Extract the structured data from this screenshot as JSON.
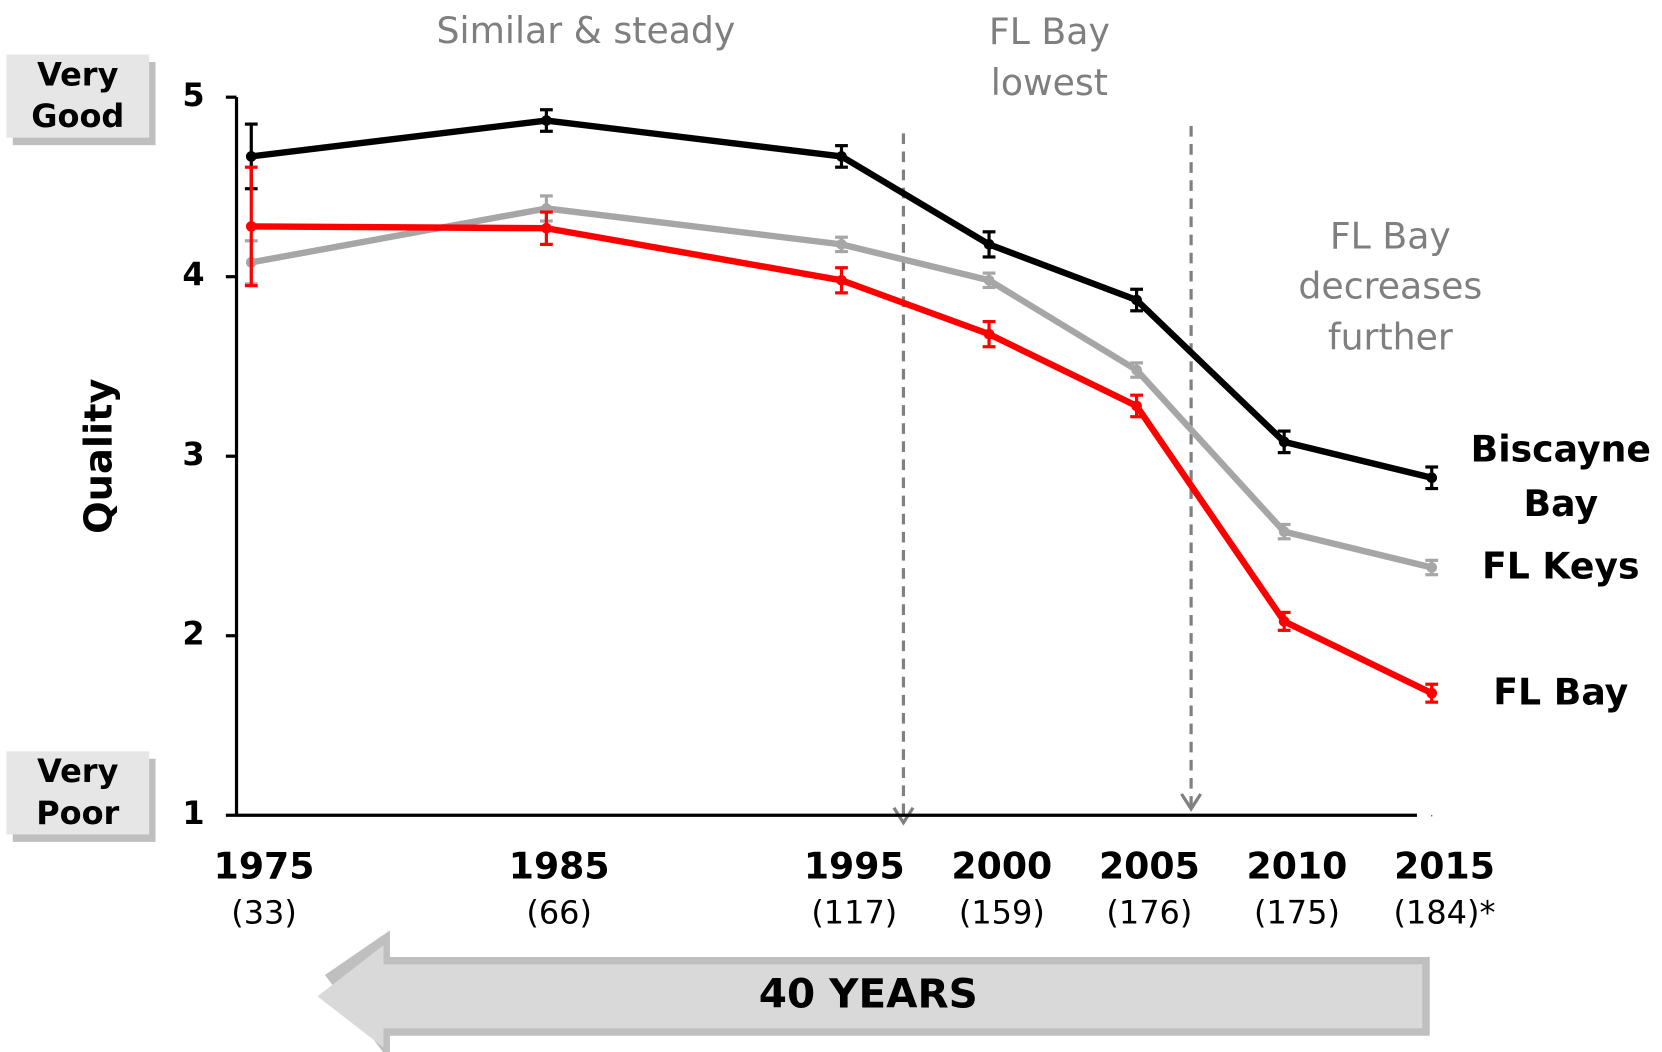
{
  "chart_data": {
    "type": "line",
    "y_label": "Quality",
    "x": [
      1975,
      1985,
      1995,
      2000,
      2005,
      2010,
      2015
    ],
    "xlim": [
      1974.5,
      2014.5
    ],
    "xticks": [
      1975,
      1985,
      1995,
      2000,
      2005,
      2010,
      2015
    ],
    "x_sublabels": [
      "(33)",
      "(66)",
      "(117)",
      "(159)",
      "(176)",
      "(175)",
      "(184)*"
    ],
    "ylim": [
      1,
      5
    ],
    "yticks": [
      1,
      2,
      3,
      4,
      5
    ],
    "rating_labels": [
      "Very Good",
      "Very Poor"
    ],
    "annotations": [
      "Similar & steady",
      "FL Bay lowest",
      "FL Bay decreases further"
    ],
    "span_label": "40 YEARS",
    "series": [
      {
        "name": "Biscayne Bay",
        "color": "#000000",
        "values": [
          4.67,
          4.87,
          4.67,
          4.18,
          3.87,
          3.08,
          2.88
        ],
        "errors": [
          0.18,
          0.06,
          0.06,
          0.07,
          0.06,
          0.06,
          0.06
        ]
      },
      {
        "name": "FL Keys",
        "color": "#a6a6a6",
        "values": [
          4.08,
          4.38,
          4.18,
          3.98,
          3.48,
          2.58,
          2.38
        ],
        "errors": [
          0.12,
          0.07,
          0.04,
          0.04,
          0.04,
          0.04,
          0.04
        ]
      },
      {
        "name": "FL Bay",
        "color": "#ff0000",
        "values": [
          4.28,
          4.27,
          3.98,
          3.68,
          3.28,
          2.08,
          1.68
        ],
        "errors": [
          0.33,
          0.09,
          0.07,
          0.07,
          0.06,
          0.05,
          0.05
        ]
      }
    ]
  }
}
